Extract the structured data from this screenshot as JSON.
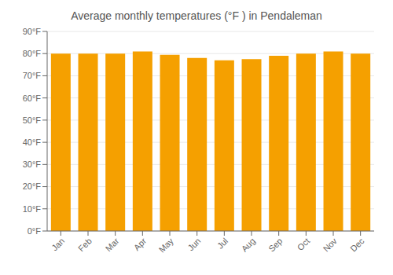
{
  "chart_data": {
    "type": "bar",
    "title": "Average monthly temperatures (°F ) in Pendaleman",
    "categories": [
      "Jan",
      "Feb",
      "Mar",
      "Apr",
      "May",
      "Jun",
      "Jul",
      "Aug",
      "Sep",
      "Oct",
      "Nov",
      "Dec"
    ],
    "values": [
      80,
      80,
      80,
      81,
      79.5,
      78,
      77,
      77.5,
      79,
      80,
      81,
      80
    ],
    "color": "#F5A000",
    "ylim": [
      0,
      90
    ],
    "yticks": [
      {
        "value": 0,
        "label": "0°F"
      },
      {
        "value": 10,
        "label": "10°F"
      },
      {
        "value": 20,
        "label": "20°F"
      },
      {
        "value": 30,
        "label": "30°F"
      },
      {
        "value": 40,
        "label": "40°F"
      },
      {
        "value": 50,
        "label": "50°F"
      },
      {
        "value": 60,
        "label": "60°F"
      },
      {
        "value": 70,
        "label": "70°F"
      },
      {
        "value": 80,
        "label": "80°F"
      },
      {
        "value": 90,
        "label": "90°F"
      }
    ],
    "grid": true
  }
}
